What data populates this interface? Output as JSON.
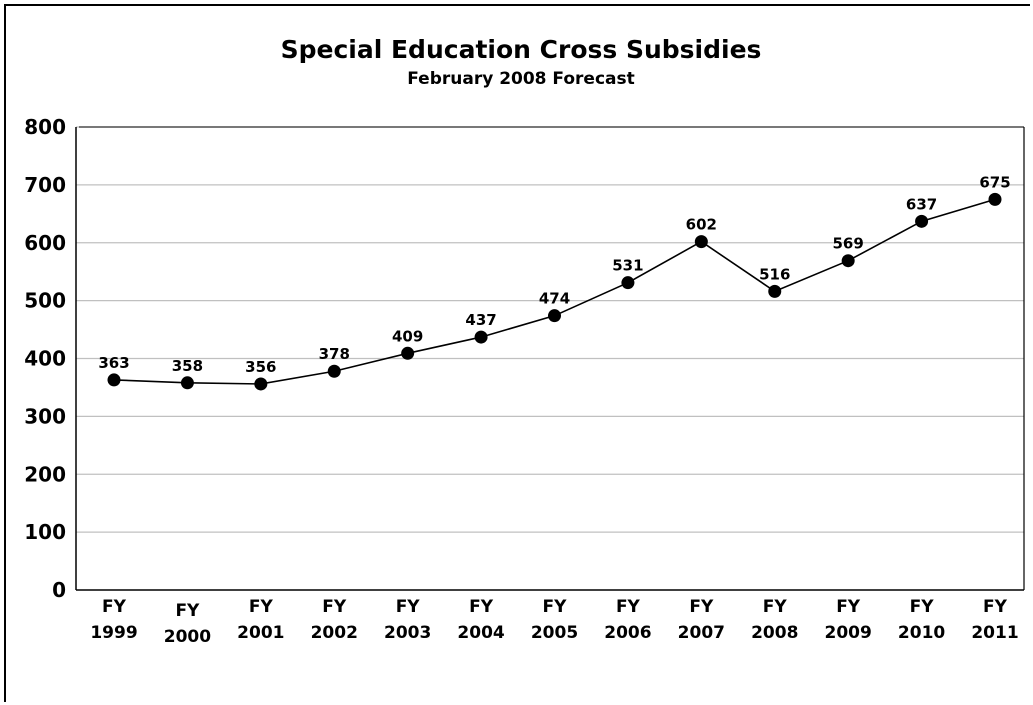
{
  "chart_data": {
    "type": "line",
    "title": "Special Education Cross Subsidies",
    "subtitle": "February 2008 Forecast",
    "xlabel": "",
    "ylabel": "",
    "ylim": [
      0,
      800
    ],
    "yticks": [
      "0",
      "100",
      "200",
      "300",
      "400",
      "500",
      "600",
      "700",
      "800"
    ],
    "grid": true,
    "legend": "none",
    "categories": [
      {
        "line1": "FY",
        "line2": "1999"
      },
      {
        "line1": "FY",
        "line2": "2000"
      },
      {
        "line1": "FY",
        "line2": "2001"
      },
      {
        "line1": "FY",
        "line2": "2002"
      },
      {
        "line1": "FY",
        "line2": "2003"
      },
      {
        "line1": "FY",
        "line2": "2004"
      },
      {
        "line1": "FY",
        "line2": "2005"
      },
      {
        "line1": "FY",
        "line2": "2006"
      },
      {
        "line1": "FY",
        "line2": "2007"
      },
      {
        "line1": "FY",
        "line2": "2008"
      },
      {
        "line1": "FY",
        "line2": "2009"
      },
      {
        "line1": "FY",
        "line2": "2010"
      },
      {
        "line1": "FY",
        "line2": "2011"
      }
    ],
    "series": [
      {
        "values": [
          363,
          358,
          356,
          378,
          409,
          437,
          474,
          531,
          602,
          516,
          569,
          637,
          675
        ],
        "labels": [
          "363",
          "358",
          "356",
          "378",
          "409",
          "437",
          "474",
          "531",
          "602",
          "516",
          "569",
          "637",
          "675"
        ],
        "color": "#000000"
      }
    ],
    "gridColor": "#c0c0c0"
  }
}
